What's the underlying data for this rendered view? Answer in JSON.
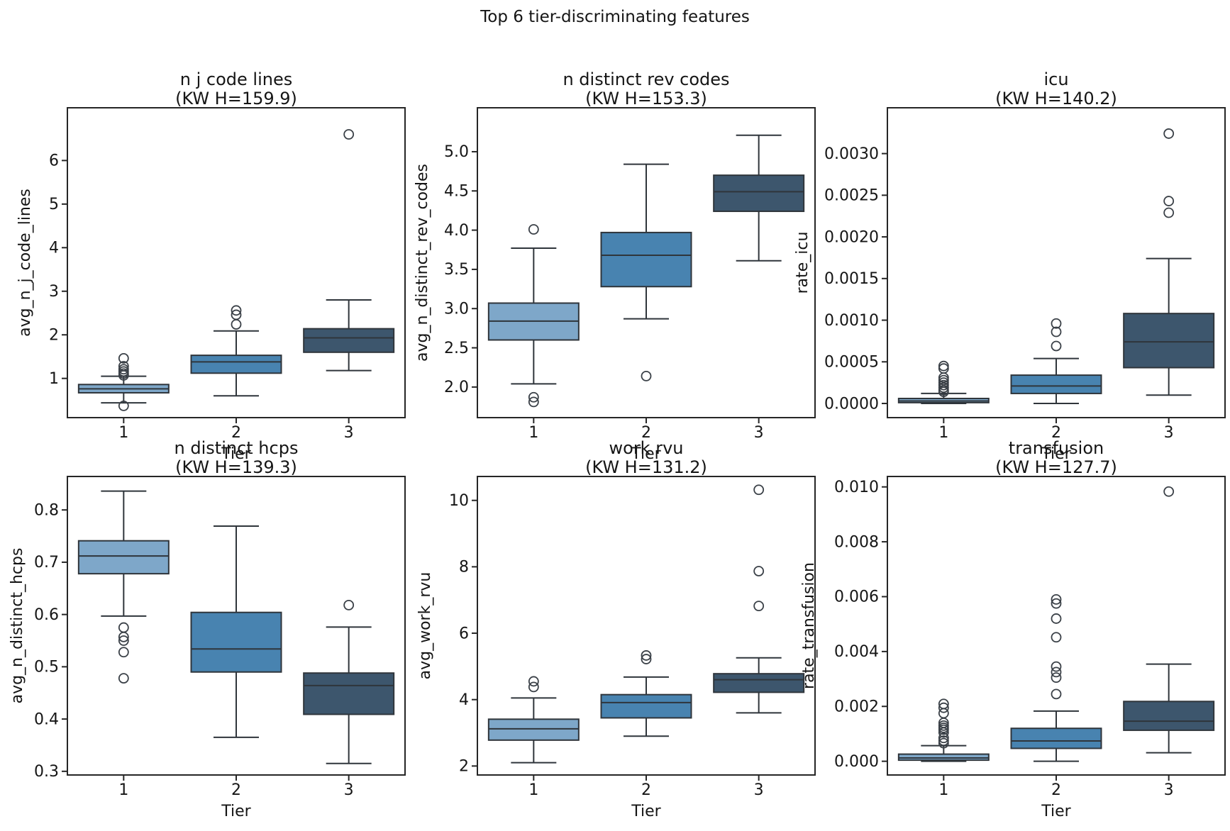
{
  "figure": {
    "suptitle": "Top 6 tier-discriminating features",
    "xlabel": "Tier",
    "tiers": [
      "1",
      "2",
      "3"
    ],
    "colors": {
      "tier1_fill": "#7EA7C9",
      "tier2_fill": "#4883B0",
      "tier3_fill": "#3D566D",
      "box_edge": "#2F353B",
      "whisker": "#2F353B",
      "outlier_edge": "#3A4047",
      "spine": "#262626",
      "text": "#151515",
      "background": "#FFFFFF"
    }
  },
  "chart_data": [
    {
      "type": "box",
      "title": "n j code lines",
      "subtitle": "(KW H=159.9)",
      "kw_h": 159.9,
      "ylabel": "avg_n_j_code_lines",
      "xlabel": "Tier",
      "categories": [
        "1",
        "2",
        "3"
      ],
      "ylim": [
        0.1,
        7.21
      ],
      "yticks": [
        {
          "value": 1,
          "label": "1"
        },
        {
          "value": 2,
          "label": "2"
        },
        {
          "value": 3,
          "label": "3"
        },
        {
          "value": 4,
          "label": "4"
        },
        {
          "value": 5,
          "label": "5"
        },
        {
          "value": 6,
          "label": "6"
        }
      ],
      "boxes": [
        {
          "tier": "1",
          "whisker_low": 0.44,
          "q1": 0.67,
          "median": 0.76,
          "q3": 0.86,
          "whisker_high": 1.05,
          "outliers": [
            0.37,
            1.07,
            1.11,
            1.16,
            1.21,
            1.28,
            1.46
          ]
        },
        {
          "tier": "2",
          "whisker_low": 0.6,
          "q1": 1.12,
          "median": 1.38,
          "q3": 1.53,
          "whisker_high": 2.09,
          "outliers": [
            2.24,
            2.46,
            2.56
          ]
        },
        {
          "tier": "3",
          "whisker_low": 1.18,
          "q1": 1.6,
          "median": 1.93,
          "q3": 2.14,
          "whisker_high": 2.8,
          "outliers": [
            6.6
          ]
        }
      ]
    },
    {
      "type": "box",
      "title": "n distinct rev codes",
      "subtitle": "(KW H=153.3)",
      "kw_h": 153.3,
      "ylabel": "avg_n_distinct_rev_codes",
      "xlabel": "Tier",
      "categories": [
        "1",
        "2",
        "3"
      ],
      "ylim": [
        1.61,
        5.56
      ],
      "yticks": [
        {
          "value": 2.0,
          "label": "2.0"
        },
        {
          "value": 2.5,
          "label": "2.5"
        },
        {
          "value": 3.0,
          "label": "3.0"
        },
        {
          "value": 3.5,
          "label": "3.5"
        },
        {
          "value": 4.0,
          "label": "4.0"
        },
        {
          "value": 4.5,
          "label": "4.5"
        },
        {
          "value": 5.0,
          "label": "5.0"
        }
      ],
      "boxes": [
        {
          "tier": "1",
          "whisker_low": 2.04,
          "q1": 2.6,
          "median": 2.84,
          "q3": 3.07,
          "whisker_high": 3.77,
          "outliers": [
            4.01,
            1.87,
            1.81
          ]
        },
        {
          "tier": "2",
          "whisker_low": 2.87,
          "q1": 3.28,
          "median": 3.68,
          "q3": 3.97,
          "whisker_high": 4.84,
          "outliers": [
            2.14
          ]
        },
        {
          "tier": "3",
          "whisker_low": 3.61,
          "q1": 4.24,
          "median": 4.49,
          "q3": 4.7,
          "whisker_high": 5.21,
          "outliers": []
        }
      ]
    },
    {
      "type": "box",
      "title": "icu",
      "subtitle": "(KW H=140.2)",
      "kw_h": 140.2,
      "ylabel": "rate_icu",
      "xlabel": "Tier",
      "categories": [
        "1",
        "2",
        "3"
      ],
      "ylim": [
        -0.00017,
        0.00355
      ],
      "yticks": [
        {
          "value": 0.0,
          "label": "0.0000"
        },
        {
          "value": 0.0005,
          "label": "0.0005"
        },
        {
          "value": 0.001,
          "label": "0.0010"
        },
        {
          "value": 0.0015,
          "label": "0.0015"
        },
        {
          "value": 0.002,
          "label": "0.0020"
        },
        {
          "value": 0.0025,
          "label": "0.0025"
        },
        {
          "value": 0.003,
          "label": "0.0030"
        }
      ],
      "boxes": [
        {
          "tier": "1",
          "whisker_low": 0.0,
          "q1": 1e-05,
          "median": 3e-05,
          "q3": 6e-05,
          "whisker_high": 0.00012,
          "outliers": [
            0.00014,
            0.00016,
            0.00019,
            0.00022,
            0.00025,
            0.00028,
            0.00031,
            0.00042,
            0.00045
          ]
        },
        {
          "tier": "2",
          "whisker_low": 0.0,
          "q1": 0.00012,
          "median": 0.00021,
          "q3": 0.00034,
          "whisker_high": 0.00054,
          "outliers": [
            0.00069,
            0.00086,
            0.00096
          ]
        },
        {
          "tier": "3",
          "whisker_low": 0.0001,
          "q1": 0.00043,
          "median": 0.00074,
          "q3": 0.00108,
          "whisker_high": 0.00174,
          "outliers": [
            0.00229,
            0.00243,
            0.00324
          ]
        }
      ]
    },
    {
      "type": "box",
      "title": "n distinct hcps",
      "subtitle": "(KW H=139.3)",
      "kw_h": 139.3,
      "ylabel": "avg_n_distinct_hcps",
      "xlabel": "Tier",
      "categories": [
        "1",
        "2",
        "3"
      ],
      "ylim": [
        0.293,
        0.864
      ],
      "yticks": [
        {
          "value": 0.3,
          "label": "0.3"
        },
        {
          "value": 0.4,
          "label": "0.4"
        },
        {
          "value": 0.5,
          "label": "0.5"
        },
        {
          "value": 0.6,
          "label": "0.6"
        },
        {
          "value": 0.7,
          "label": "0.7"
        },
        {
          "value": 0.8,
          "label": "0.8"
        }
      ],
      "boxes": [
        {
          "tier": "1",
          "whisker_low": 0.597,
          "q1": 0.678,
          "median": 0.712,
          "q3": 0.741,
          "whisker_high": 0.836,
          "outliers": [
            0.575,
            0.557,
            0.55,
            0.528,
            0.478
          ]
        },
        {
          "tier": "2",
          "whisker_low": 0.365,
          "q1": 0.49,
          "median": 0.534,
          "q3": 0.604,
          "whisker_high": 0.769,
          "outliers": []
        },
        {
          "tier": "3",
          "whisker_low": 0.315,
          "q1": 0.409,
          "median": 0.464,
          "q3": 0.488,
          "whisker_high": 0.576,
          "outliers": [
            0.618
          ]
        }
      ]
    },
    {
      "type": "box",
      "title": "work rvu",
      "subtitle": "(KW H=131.2)",
      "kw_h": 131.2,
      "ylabel": "avg_work_rvu",
      "xlabel": "Tier",
      "categories": [
        "1",
        "2",
        "3"
      ],
      "ylim": [
        1.73,
        10.72
      ],
      "yticks": [
        {
          "value": 2,
          "label": "2"
        },
        {
          "value": 4,
          "label": "4"
        },
        {
          "value": 6,
          "label": "6"
        },
        {
          "value": 8,
          "label": "8"
        },
        {
          "value": 10,
          "label": "10"
        }
      ],
      "boxes": [
        {
          "tier": "1",
          "whisker_low": 2.1,
          "q1": 2.78,
          "median": 3.12,
          "q3": 3.41,
          "whisker_high": 4.05,
          "outliers": [
            4.38,
            4.55
          ]
        },
        {
          "tier": "2",
          "whisker_low": 2.9,
          "q1": 3.45,
          "median": 3.91,
          "q3": 4.15,
          "whisker_high": 4.68,
          "outliers": [
            5.22,
            5.33
          ]
        },
        {
          "tier": "3",
          "whisker_low": 3.6,
          "q1": 4.22,
          "median": 4.6,
          "q3": 4.78,
          "whisker_high": 5.26,
          "outliers": [
            6.82,
            7.87,
            10.32
          ]
        }
      ]
    },
    {
      "type": "box",
      "title": "transfusion",
      "subtitle": "(KW H=127.7)",
      "kw_h": 127.7,
      "ylabel": "rate_transfusion",
      "xlabel": "Tier",
      "categories": [
        "1",
        "2",
        "3"
      ],
      "ylim": [
        -0.0005,
        0.01038
      ],
      "yticks": [
        {
          "value": 0.0,
          "label": "0.000"
        },
        {
          "value": 0.002,
          "label": "0.002"
        },
        {
          "value": 0.004,
          "label": "0.004"
        },
        {
          "value": 0.006,
          "label": "0.006"
        },
        {
          "value": 0.008,
          "label": "0.008"
        },
        {
          "value": 0.01,
          "label": "0.010"
        }
      ],
      "boxes": [
        {
          "tier": "1",
          "whisker_low": 0.0,
          "q1": 4e-05,
          "median": 0.00012,
          "q3": 0.00026,
          "whisker_high": 0.00057,
          "outliers": [
            0.00066,
            0.00075,
            0.00085,
            0.00105,
            0.00115,
            0.00122,
            0.0013,
            0.0014,
            0.00175,
            0.00195,
            0.00209
          ]
        },
        {
          "tier": "2",
          "whisker_low": 0.0,
          "q1": 0.00047,
          "median": 0.00074,
          "q3": 0.0012,
          "whisker_high": 0.00183,
          "outliers": [
            0.00245,
            0.00305,
            0.00325,
            0.00345,
            0.00452,
            0.0052,
            0.00575,
            0.0059
          ]
        },
        {
          "tier": "3",
          "whisker_low": 0.00031,
          "q1": 0.00113,
          "median": 0.00146,
          "q3": 0.00218,
          "whisker_high": 0.00354,
          "outliers": [
            0.00983
          ]
        }
      ]
    }
  ]
}
